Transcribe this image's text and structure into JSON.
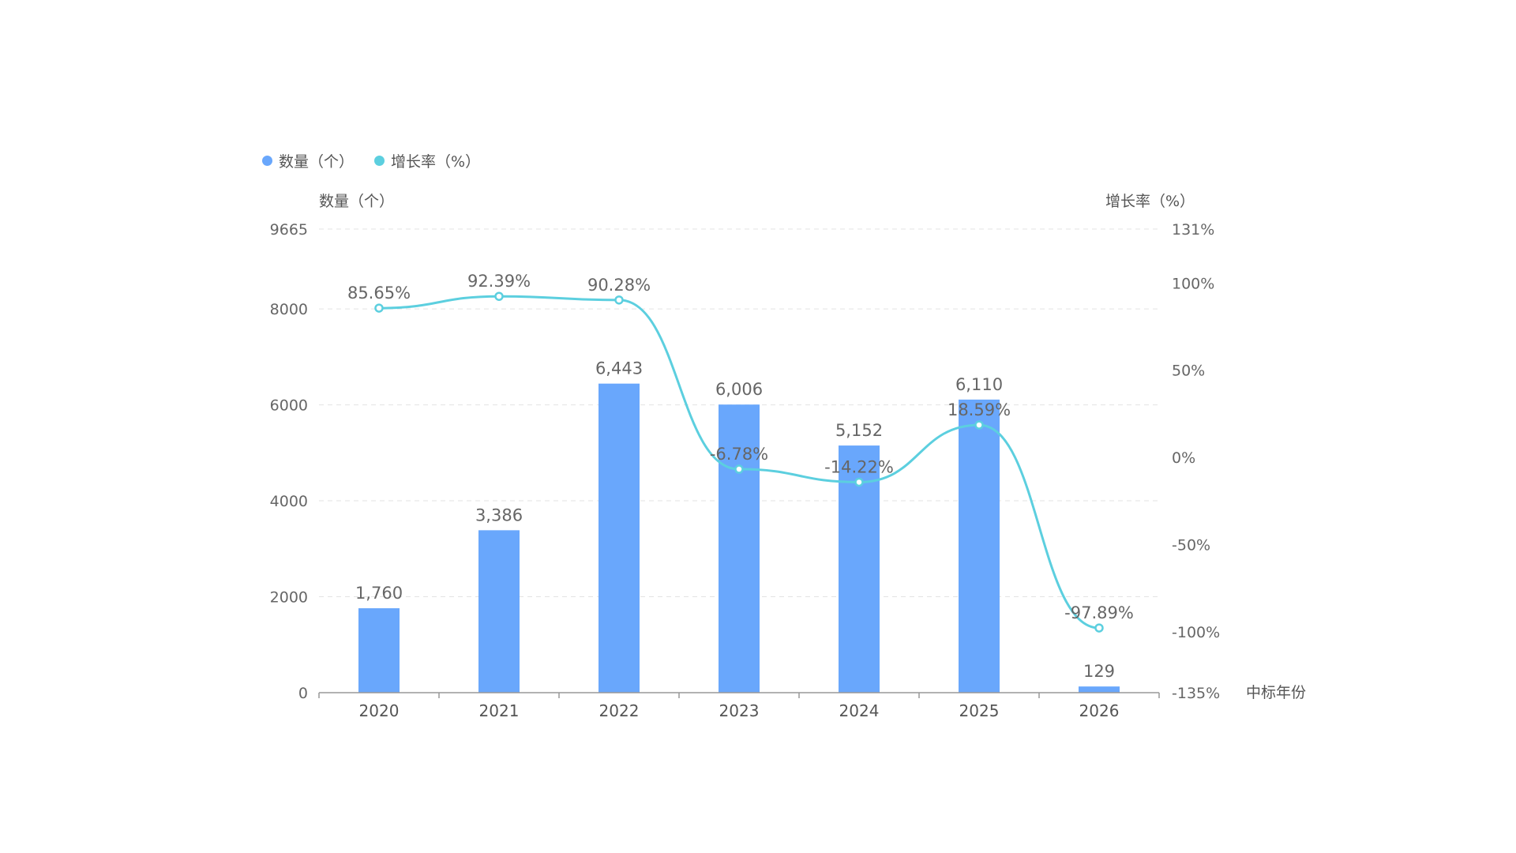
{
  "legend": {
    "items": [
      {
        "label": "数量（个）",
        "color": "#69a7fc"
      },
      {
        "label": "增长率（%）",
        "color": "#5ccfdf"
      }
    ]
  },
  "chart_data": {
    "type": "bar",
    "categories": [
      "2020",
      "2021",
      "2022",
      "2023",
      "2024",
      "2025",
      "2026"
    ],
    "series": [
      {
        "name": "数量（个）",
        "type": "bar",
        "axis": "left",
        "values": [
          1760,
          3386,
          6443,
          6006,
          5152,
          6110,
          129
        ],
        "labels": [
          "1,760",
          "3,386",
          "6,443",
          "6,006",
          "5,152",
          "6,110",
          "129"
        ],
        "color": "#69a7fc"
      },
      {
        "name": "增长率（%）",
        "type": "line",
        "axis": "right",
        "values": [
          85.65,
          92.39,
          90.28,
          -6.78,
          -14.22,
          18.59,
          -97.89
        ],
        "labels": [
          "85.65%",
          "92.39%",
          "90.28%",
          "-6.78%",
          "-14.22%",
          "18.59%",
          "-97.89%"
        ],
        "color": "#5ccfdf"
      }
    ],
    "left_axis": {
      "title": "数量（个）",
      "ticks": [
        0,
        2000,
        4000,
        6000,
        8000,
        9665
      ],
      "tick_labels": [
        "0",
        "2000",
        "4000",
        "6000",
        "8000",
        "9665"
      ],
      "ylim": [
        0,
        9665
      ]
    },
    "right_axis": {
      "title": "增长率（%）",
      "ticks": [
        -135,
        -100,
        -50,
        0,
        50,
        100,
        131
      ],
      "tick_labels": [
        "-135%",
        "-100%",
        "-50%",
        "0%",
        "50%",
        "100%",
        "131%"
      ],
      "ylim": [
        -135,
        131
      ]
    },
    "x_axis": {
      "title": "中标年份"
    },
    "grid": true,
    "legend_position": "top-left"
  }
}
